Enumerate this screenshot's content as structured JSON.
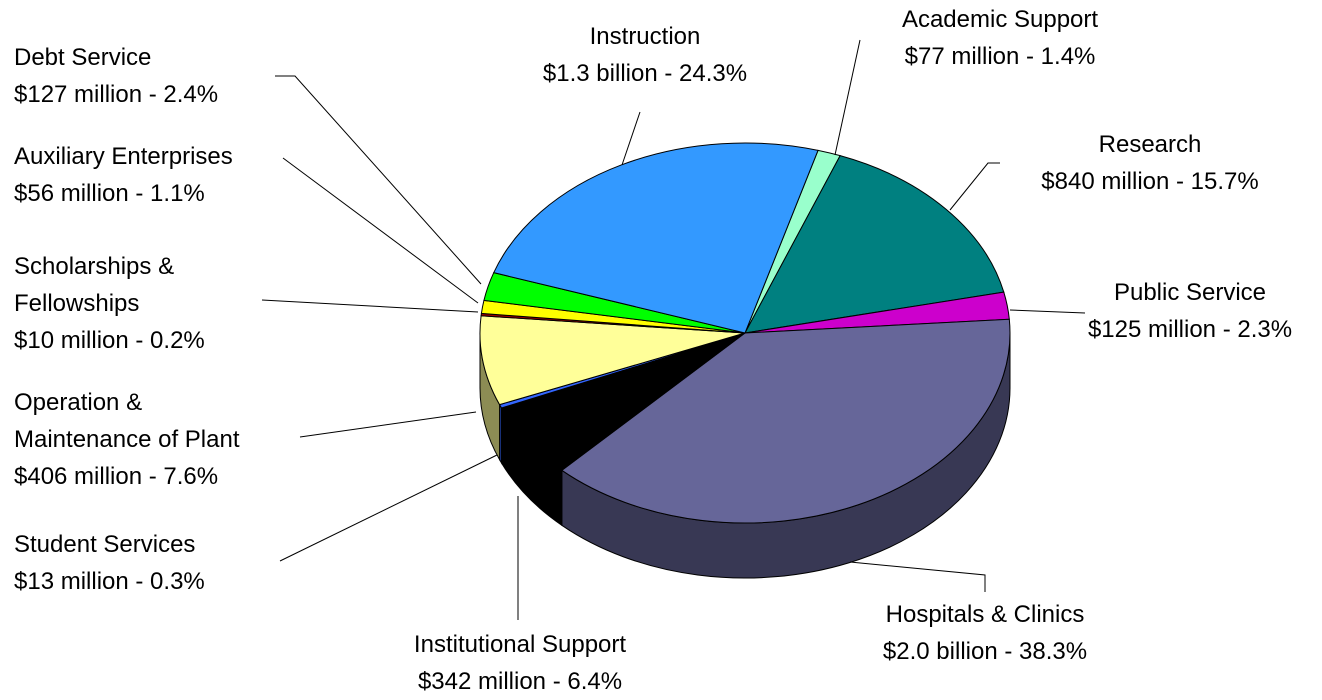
{
  "chart_data": {
    "type": "pie",
    "categories": [
      "Academic Support",
      "Research",
      "Public Service",
      "Hospitals & Clinics",
      "Institutional Support",
      "Student Services",
      "Operation &\nMaintenance of Plant",
      "Scholarships &\nFellowships",
      "Auxiliary Enterprises",
      "Debt Service",
      "Instruction"
    ],
    "values": [
      1.4,
      15.7,
      2.3,
      38.3,
      6.4,
      0.3,
      7.6,
      0.2,
      1.1,
      2.4,
      24.3
    ],
    "value_labels": [
      "$77 million - 1.4%",
      "$840 million - 15.7%",
      "$125 million - 2.3%",
      "$2.0 billion - 38.3%",
      "$342 million - 6.4%",
      "$13 million - 0.3%",
      "$406 million - 7.6%",
      "$10 million - 0.2%",
      "$56 million - 1.1%",
      "$127 million - 2.4%",
      "$1.3 billion - 24.3%"
    ],
    "colors": [
      "#99ffcc",
      "#008080",
      "#cc00cc",
      "#666699",
      "#000000",
      "#3366ff",
      "#ffff99",
      "#990000",
      "#ffff00",
      "#00ff00",
      "#3399ff"
    ]
  }
}
